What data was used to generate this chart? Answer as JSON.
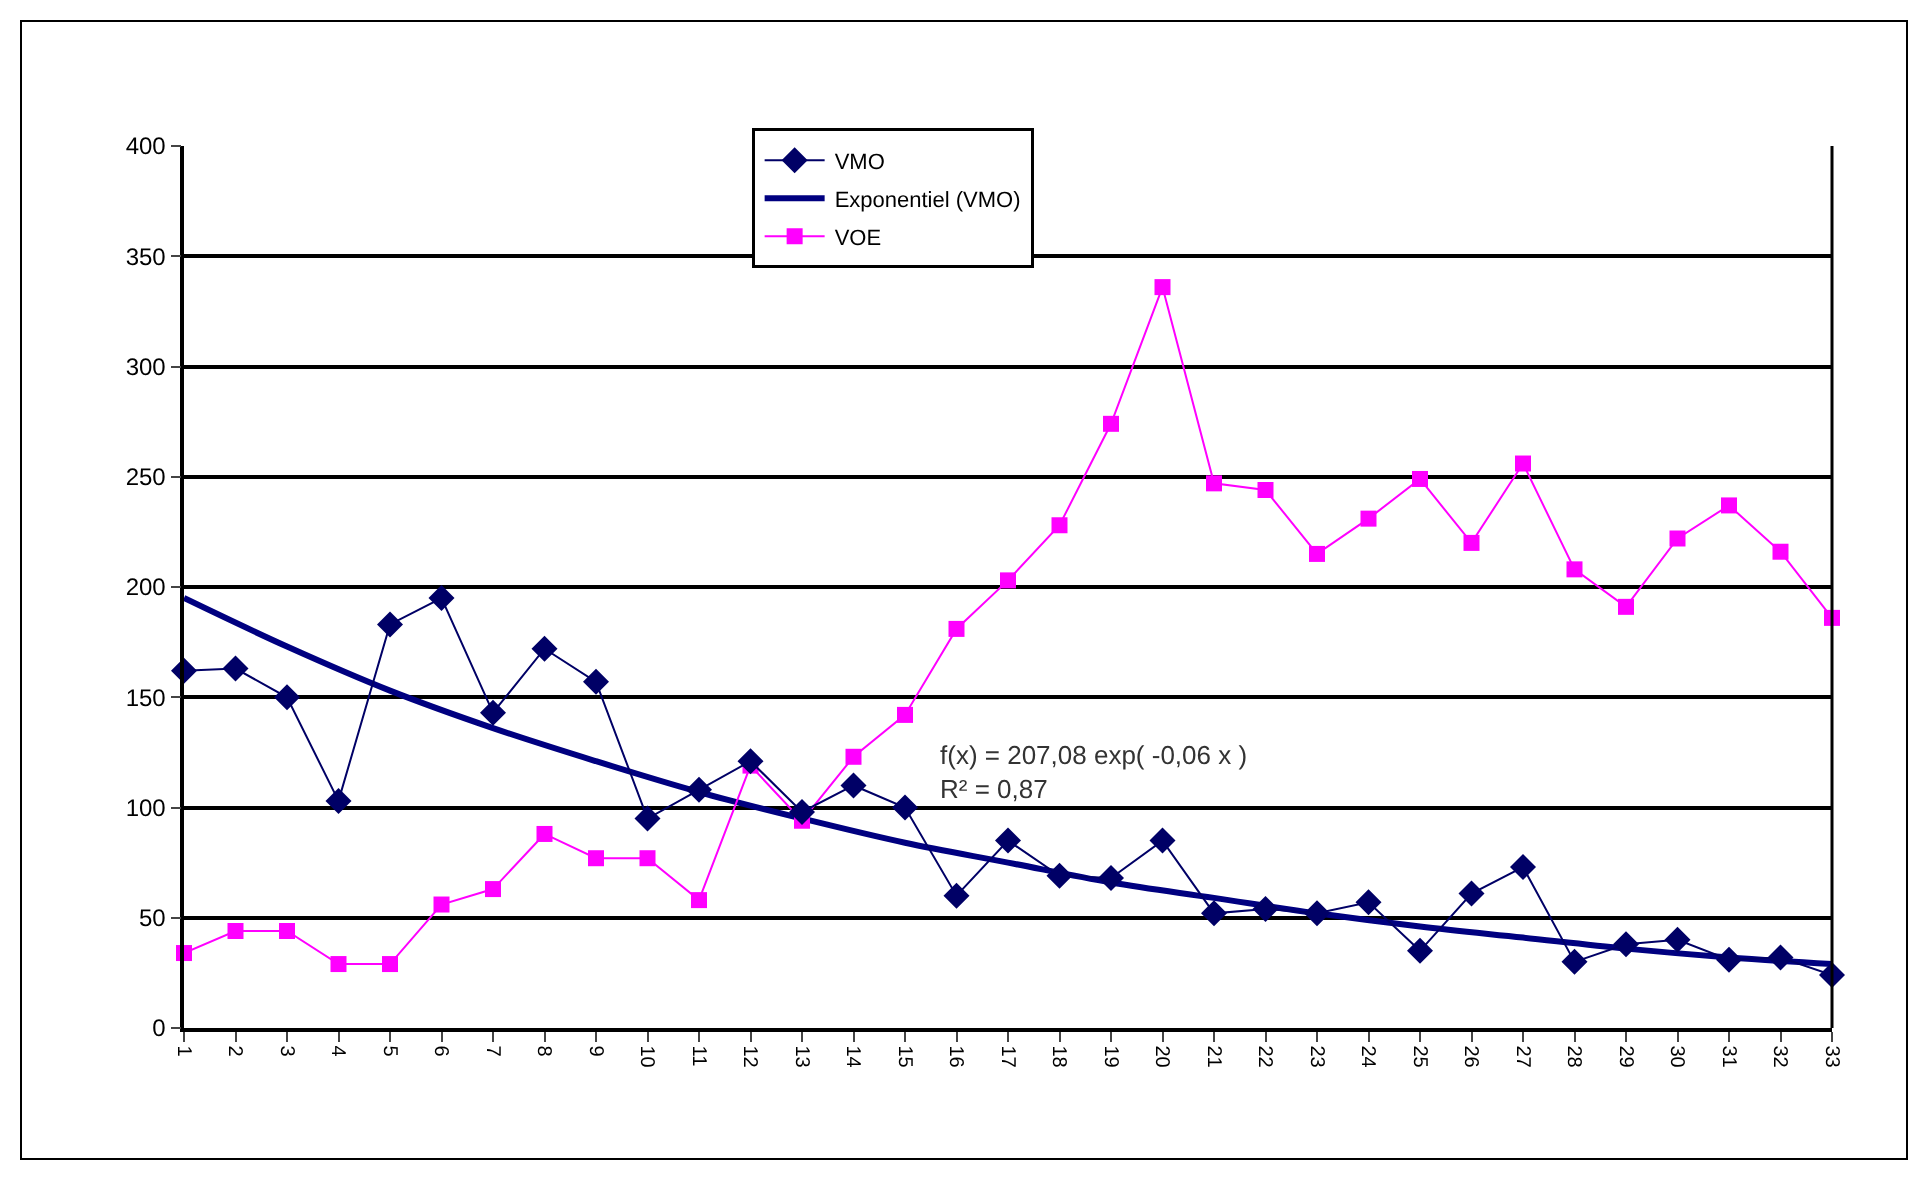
{
  "chart_data": {
    "type": "line",
    "x": [
      1,
      2,
      3,
      4,
      5,
      6,
      7,
      8,
      9,
      10,
      11,
      12,
      13,
      14,
      15,
      16,
      17,
      18,
      19,
      20,
      21,
      22,
      23,
      24,
      25,
      26,
      27,
      28,
      29,
      30,
      31,
      32,
      33
    ],
    "series": [
      {
        "name": "VMO",
        "color": "#000066",
        "marker": "diamond",
        "values": [
          162,
          163,
          150,
          103,
          183,
          195,
          143,
          172,
          157,
          95,
          108,
          121,
          98,
          110,
          100,
          60,
          85,
          69,
          68,
          85,
          52,
          54,
          52,
          57,
          35,
          61,
          73,
          30,
          38,
          40,
          31,
          32,
          24
        ]
      },
      {
        "name": "Exponentiel (VMO)",
        "color": "#000080",
        "marker": "none",
        "x": [
          1,
          3,
          5,
          7,
          9,
          11,
          13,
          15,
          17,
          19,
          21,
          23,
          25,
          27,
          29,
          31,
          33
        ],
        "values": [
          195,
          173,
          153,
          136,
          121,
          107,
          95,
          84,
          75,
          66,
          59,
          52,
          46,
          41,
          36,
          32,
          29
        ]
      },
      {
        "name": "VOE",
        "color": "#ff00ff",
        "marker": "square",
        "values": [
          34,
          44,
          44,
          29,
          29,
          56,
          63,
          88,
          77,
          77,
          58,
          119,
          94,
          123,
          142,
          181,
          203,
          228,
          274,
          336,
          247,
          244,
          215,
          231,
          249,
          220,
          256,
          208,
          191,
          222,
          237,
          216,
          186
        ]
      }
    ],
    "xlim": [
      1,
      33
    ],
    "xticks": [
      1,
      2,
      3,
      4,
      5,
      6,
      7,
      8,
      9,
      10,
      11,
      12,
      13,
      14,
      15,
      16,
      17,
      18,
      19,
      20,
      21,
      22,
      23,
      24,
      25,
      26,
      27,
      28,
      29,
      30,
      31,
      32,
      33
    ],
    "ylim": [
      0,
      400
    ],
    "yticks": [
      0,
      50,
      100,
      150,
      200,
      250,
      300,
      350,
      400
    ],
    "grid": "y",
    "legend": "top",
    "line_style": "solid",
    "annotations": [
      "f(x) = 207,08 exp( -0,06 x )\nR² = 0,87"
    ]
  }
}
